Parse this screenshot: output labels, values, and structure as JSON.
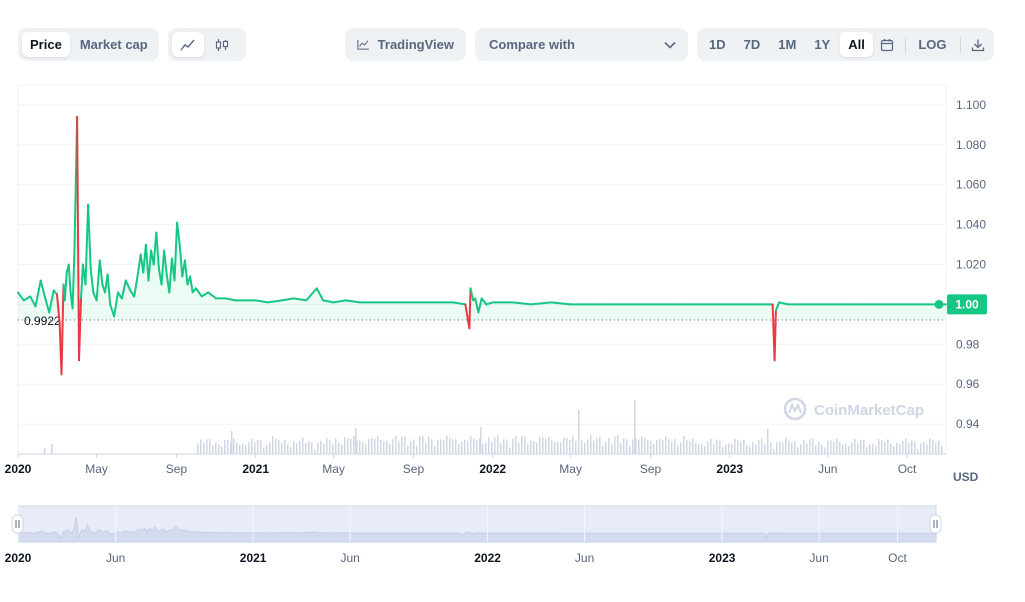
{
  "toolbar": {
    "price_label": "Price",
    "market_cap_label": "Market cap",
    "line_icon": "line-chart-icon",
    "candle_icon": "candlestick-icon",
    "tradingview_label": "TradingView",
    "compare_label": "Compare with",
    "ranges": [
      "1D",
      "7D",
      "1M",
      "1Y",
      "All"
    ],
    "active_range": "All",
    "log_label": "LOG",
    "calendar_icon": "calendar-icon",
    "download_icon": "download-icon"
  },
  "colors": {
    "up": "#16c784",
    "down": "#ea3943",
    "accent": "#16c784",
    "grid": "#eff2f5",
    "text": "#58667e"
  },
  "chart_data": {
    "type": "line",
    "title": "",
    "ylabel": "",
    "currency_label": "USD",
    "ylim": [
      0.925,
      1.11
    ],
    "y_ticks": [
      "1.100",
      "1.080",
      "1.060",
      "1.040",
      "1.020",
      "0.98",
      "0.96",
      "0.94"
    ],
    "current_price_label": "1.00",
    "baseline_label": "0.9922",
    "baseline_value": 0.9922,
    "current_value": 1.0,
    "x_range": [
      "2020-01-01",
      "2023-11-30"
    ],
    "x_ticks": [
      {
        "date": "2020-01-01",
        "label": "2020",
        "bold": true
      },
      {
        "date": "2020-05-01",
        "label": "May",
        "bold": false
      },
      {
        "date": "2020-09-01",
        "label": "Sep",
        "bold": false
      },
      {
        "date": "2021-01-01",
        "label": "2021",
        "bold": true
      },
      {
        "date": "2021-05-01",
        "label": "May",
        "bold": false
      },
      {
        "date": "2021-09-01",
        "label": "Sep",
        "bold": false
      },
      {
        "date": "2022-01-01",
        "label": "2022",
        "bold": true
      },
      {
        "date": "2022-05-01",
        "label": "May",
        "bold": false
      },
      {
        "date": "2022-09-01",
        "label": "Sep",
        "bold": false
      },
      {
        "date": "2023-01-01",
        "label": "2023",
        "bold": true
      },
      {
        "date": "2023-06-01",
        "label": "Jun",
        "bold": false
      },
      {
        "date": "2023-10-01",
        "label": "Oct",
        "bold": false
      }
    ],
    "navigator_ticks": [
      {
        "date": "2020-01-01",
        "label": "2020",
        "bold": true
      },
      {
        "date": "2020-06-01",
        "label": "Jun",
        "bold": false
      },
      {
        "date": "2021-01-01",
        "label": "2021",
        "bold": true
      },
      {
        "date": "2021-06-01",
        "label": "Jun",
        "bold": false
      },
      {
        "date": "2022-01-01",
        "label": "2022",
        "bold": true
      },
      {
        "date": "2022-06-01",
        "label": "Jun",
        "bold": false
      },
      {
        "date": "2023-01-01",
        "label": "2023",
        "bold": true
      },
      {
        "date": "2023-06-01",
        "label": "Jun",
        "bold": false
      },
      {
        "date": "2023-10-01",
        "label": "Oct",
        "bold": false
      }
    ],
    "series": [
      {
        "x": [
          "2020-01-01",
          "2020-01-10",
          "2020-01-20",
          "2020-01-28",
          "2020-02-05",
          "2020-02-12",
          "2020-02-18",
          "2020-02-25",
          "2020-03-01",
          "2020-03-05",
          "2020-03-08",
          "2020-03-11",
          "2020-03-13",
          "2020-03-16",
          "2020-03-19",
          "2020-03-22",
          "2020-03-25",
          "2020-03-28",
          "2020-04-01",
          "2020-04-04",
          "2020-04-07",
          "2020-04-10",
          "2020-04-14",
          "2020-04-18",
          "2020-04-22",
          "2020-04-26",
          "2020-05-01",
          "2020-05-06",
          "2020-05-10",
          "2020-05-14",
          "2020-05-18",
          "2020-05-22",
          "2020-05-28",
          "2020-06-03",
          "2020-06-09",
          "2020-06-15",
          "2020-06-22",
          "2020-06-28",
          "2020-07-03",
          "2020-07-08",
          "2020-07-12",
          "2020-07-16",
          "2020-07-20",
          "2020-07-24",
          "2020-07-28",
          "2020-08-01",
          "2020-08-05",
          "2020-08-09",
          "2020-08-13",
          "2020-08-17",
          "2020-08-21",
          "2020-08-25",
          "2020-08-29",
          "2020-09-02",
          "2020-09-06",
          "2020-09-10",
          "2020-09-14",
          "2020-09-18",
          "2020-09-22",
          "2020-09-26",
          "2020-10-01",
          "2020-10-10",
          "2020-10-20",
          "2020-11-01",
          "2020-11-15",
          "2020-12-01",
          "2020-12-15",
          "2021-01-01",
          "2021-01-20",
          "2021-02-10",
          "2021-03-01",
          "2021-03-20",
          "2021-04-05",
          "2021-04-15",
          "2021-05-01",
          "2021-05-20",
          "2021-06-10",
          "2021-07-01",
          "2021-08-01",
          "2021-09-01",
          "2021-10-01",
          "2021-11-01",
          "2021-11-20",
          "2021-11-26",
          "2021-11-28",
          "2021-12-02",
          "2021-12-05",
          "2021-12-10",
          "2021-12-15",
          "2021-12-22",
          "2022-01-01",
          "2022-02-01",
          "2022-03-01",
          "2022-04-01",
          "2022-05-01",
          "2022-06-01",
          "2022-07-01",
          "2022-08-01",
          "2022-09-01",
          "2022-10-01",
          "2022-11-01",
          "2022-12-01",
          "2023-01-01",
          "2023-02-01",
          "2023-03-01",
          "2023-03-08",
          "2023-03-11",
          "2023-03-13",
          "2023-03-18",
          "2023-04-01",
          "2023-05-01",
          "2023-06-01",
          "2023-07-01",
          "2023-08-01",
          "2023-09-01",
          "2023-10-01",
          "2023-11-01",
          "2023-11-30"
        ],
        "values": [
          1.006,
          1.002,
          1.004,
          0.999,
          1.012,
          1.003,
          0.996,
          1.007,
          1.005,
          0.991,
          0.965,
          1.01,
          1.002,
          1.016,
          1.02,
          1.006,
          0.998,
          1.028,
          1.094,
          0.972,
          1.003,
          1.02,
          1.01,
          1.05,
          1.018,
          1.006,
          1.002,
          1.022,
          1.01,
          1.006,
          1.015,
          1.0,
          0.994,
          1.006,
          1.003,
          1.012,
          1.007,
          1.004,
          1.014,
          1.025,
          1.016,
          1.03,
          1.012,
          1.027,
          1.02,
          1.036,
          1.018,
          1.01,
          1.027,
          1.015,
          1.006,
          1.023,
          1.012,
          1.041,
          1.03,
          1.014,
          1.022,
          1.01,
          1.014,
          1.006,
          1.008,
          1.004,
          1.006,
          1.003,
          1.003,
          1.002,
          1.002,
          1.002,
          1.001,
          1.002,
          1.003,
          1.002,
          1.008,
          1.002,
          1.001,
          1.002,
          1.001,
          1.001,
          1.001,
          1.001,
          1.001,
          1.001,
          1.0,
          0.988,
          1.008,
          1.002,
          1.003,
          0.996,
          1.003,
          1.0,
          1.001,
          1.001,
          1.0,
          1.001,
          1.0,
          1.0,
          1.0,
          1.0,
          1.0,
          1.0,
          1.0,
          1.0,
          1.0,
          1.0,
          1.0,
          1.0,
          0.972,
          0.997,
          1.001,
          1.0,
          1.0,
          1.0,
          1.0,
          1.0,
          1.0,
          1.0,
          1.0,
          1.0
        ]
      }
    ]
  },
  "watermark": "CoinMarketCap"
}
